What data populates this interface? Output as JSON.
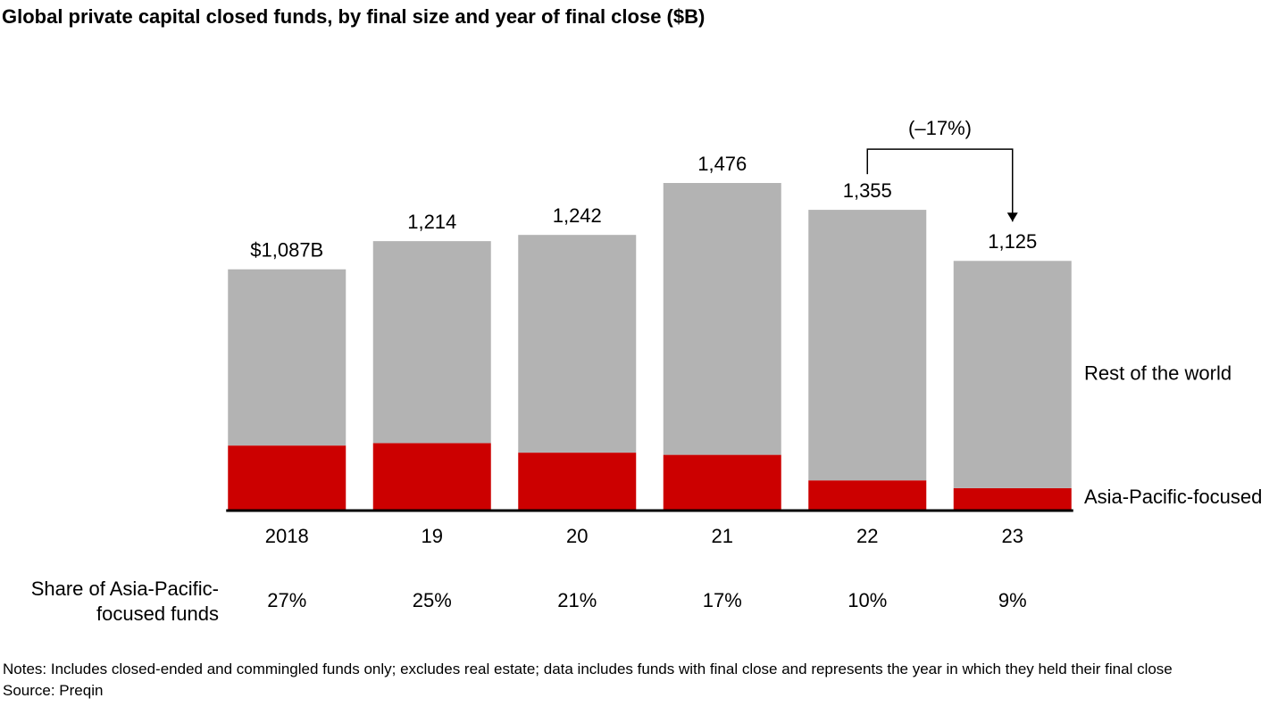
{
  "chart_data": {
    "type": "stacked-bar",
    "title": "Global private capital closed funds, by final size and year of final close ($B)",
    "categories": [
      "2018",
      "19",
      "20",
      "21",
      "22",
      "23"
    ],
    "series": [
      {
        "name": "Asia-Pacific-focused",
        "color": "#cc0000",
        "values": [
          293,
          304,
          261,
          251,
          136,
          101
        ]
      },
      {
        "name": "Rest of the world",
        "color": "#b3b3b3",
        "values": [
          794,
          910,
          981,
          1225,
          1219,
          1024
        ]
      }
    ],
    "totals": {
      "values": [
        1087,
        1214,
        1242,
        1476,
        1355,
        1125
      ],
      "value_labels": [
        "$1,087B",
        "1,214",
        "1,242",
        "1,476",
        "1,355",
        "1,125"
      ]
    },
    "share_label": "Share of Asia-Pacific-focused funds",
    "shares": {
      "values": [
        27,
        25,
        21,
        17,
        10,
        9
      ],
      "value_labels": [
        "27%",
        "25%",
        "21%",
        "17%",
        "10%",
        "9%"
      ]
    },
    "annotation": "(–17%)",
    "notes": "Notes: Includes closed-ended and commingled funds only; excludes real estate; data includes funds with final close and represents the year in which they held their final close",
    "source": "Source: Preqin"
  }
}
